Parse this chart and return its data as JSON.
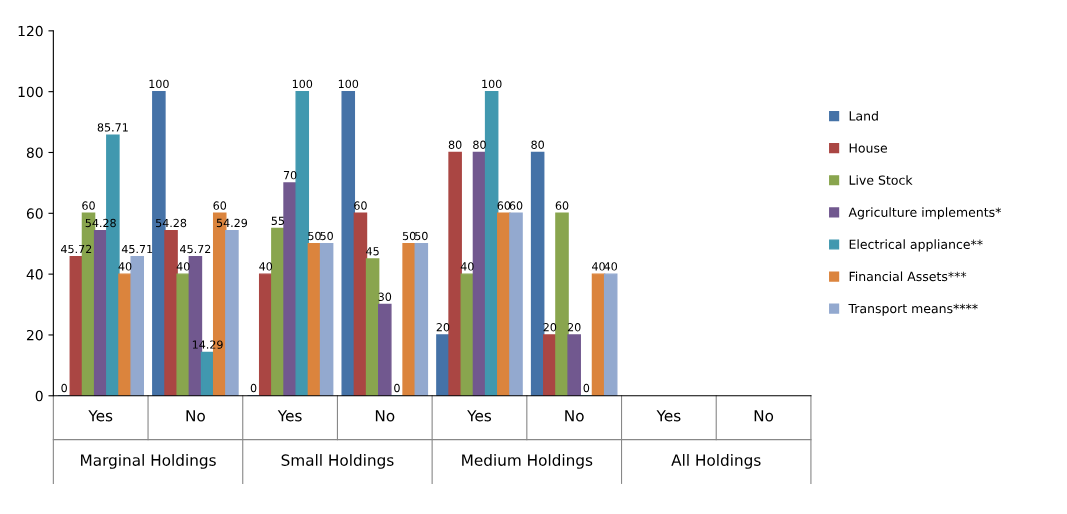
{
  "chart_data": {
    "type": "bar",
    "categories": [
      "Yes",
      "No",
      "Yes",
      "No",
      "Yes",
      "No",
      "Yes",
      "No"
    ],
    "annotations": [
      "Marginal Holdings",
      "Small Holdings",
      "Medium Holdings",
      "All Holdings"
    ],
    "series": [
      {
        "name": "Land",
        "color": "#4572a7",
        "values": [
          0,
          100,
          0,
          100,
          20,
          80,
          null,
          null
        ]
      },
      {
        "name": "House",
        "color": "#aa4643",
        "values": [
          45.72,
          54.28,
          40,
          60,
          80,
          20,
          null,
          null
        ]
      },
      {
        "name": "Live Stock",
        "color": "#89a54e",
        "values": [
          60,
          40,
          55,
          45,
          40,
          60,
          null,
          null
        ]
      },
      {
        "name": "Agriculture implements*",
        "color": "#71588f",
        "values": [
          54.28,
          45.72,
          70,
          30,
          80,
          20,
          null,
          null
        ]
      },
      {
        "name": "Electrical appliance**",
        "color": "#4198af",
        "values": [
          85.71,
          14.29,
          100,
          0,
          100,
          0,
          null,
          null
        ]
      },
      {
        "name": "Financial Assets***",
        "color": "#db843d",
        "values": [
          40,
          60,
          50,
          50,
          60,
          40,
          null,
          null
        ]
      },
      {
        "name": "Transport means****",
        "color": "#93a9cf",
        "values": [
          45.71,
          54.29,
          50,
          50,
          60,
          40,
          null,
          null
        ]
      }
    ],
    "ylim": [
      0,
      120
    ],
    "yticks": [
      0,
      20,
      40,
      60,
      80,
      100,
      120
    ],
    "data_labels": true,
    "grid": false,
    "legend": "right"
  }
}
